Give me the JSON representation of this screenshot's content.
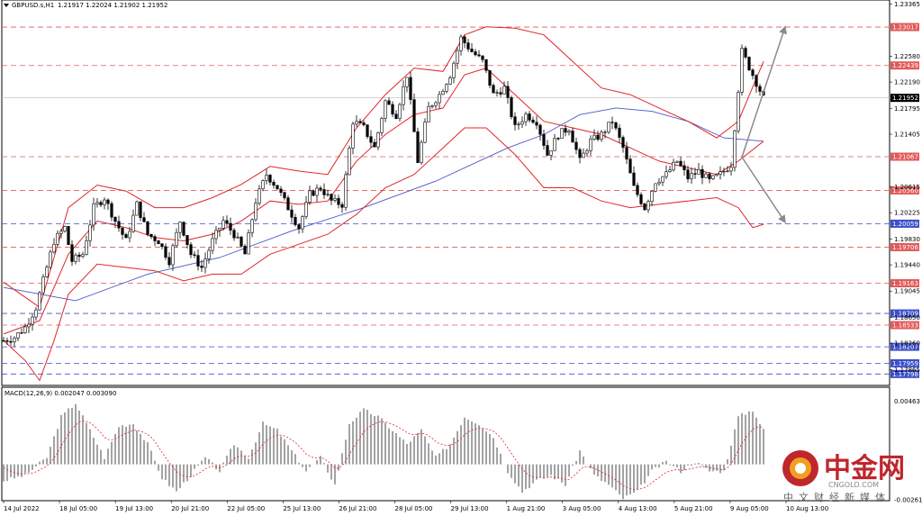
{
  "header": {
    "symbol": "GBPUSD.s,H1",
    "ohlc": "1.21917 1.22024 1.21902 1.21952"
  },
  "indicator": {
    "label": "MACD(12,26,9) 0.002047 0.003090"
  },
  "watermark": {
    "cn": "中金网",
    "en": "CNGOLD.COM",
    "sub": "中文财经新媒体"
  },
  "colors": {
    "bollinger": "#e0262b",
    "moving_average": "#4a56c8",
    "candles": "#000000",
    "resistance_line": "#e05a5a",
    "support_line": "#3b4fc8",
    "arrow": "#8a8a8a",
    "macd_hist": "#8c8c8c",
    "macd_signal": "#e0262b"
  },
  "chart_data": {
    "type": "candlestick",
    "symbol": "GBPUSD.s,H1",
    "ylim": [
      1.1768,
      1.2337
    ],
    "y_ticks": [
      "1.23365",
      "1.22580",
      "1.22190",
      "1.21795",
      "1.21405",
      "1.20615",
      "1.20225",
      "1.19830",
      "1.19440",
      "1.19045",
      "1.18650",
      "1.18260",
      "1.17865",
      "1.17470"
    ],
    "x_labels": [
      "14 Jul 2022",
      "18 Jul 05:00",
      "19 Jul 13:00",
      "20 Jul 21:00",
      "22 Jul 05:00",
      "25 Jul 13:00",
      "26 Jul 21:00",
      "28 Jul 05:00",
      "29 Jul 13:00",
      "1 Aug 21:00",
      "3 Aug 05:00",
      "4 Aug 13:00",
      "5 Aug 21:00",
      "9 Aug 05:00",
      "10 Aug 13:00"
    ],
    "current_price": "1.21952",
    "horizontal_lines": [
      {
        "value": 1.23017,
        "label": "1.23017",
        "kind": "resistance"
      },
      {
        "value": 1.22439,
        "label": "1.22439",
        "kind": "resistance"
      },
      {
        "value": 1.21067,
        "label": "1.21067",
        "kind": "resistance"
      },
      {
        "value": 1.2056,
        "label": "1.20560",
        "kind": "resistance"
      },
      {
        "value": 1.20059,
        "label": "1.20059",
        "kind": "support"
      },
      {
        "value": 1.19706,
        "label": "1.19706",
        "kind": "resistance"
      },
      {
        "value": 1.19163,
        "label": "1.19163",
        "kind": "resistance"
      },
      {
        "value": 1.18709,
        "label": "1.18709",
        "kind": "support"
      },
      {
        "value": 1.18533,
        "label": "1.18533",
        "kind": "resistance"
      },
      {
        "value": 1.18207,
        "label": "1.18207",
        "kind": "support"
      },
      {
        "value": 1.17959,
        "label": "1.17959",
        "kind": "support"
      },
      {
        "value": 1.17798,
        "label": "1.17798",
        "kind": "support"
      }
    ],
    "price_path": [
      [
        0,
        1.183
      ],
      [
        3,
        1.1835
      ],
      [
        6,
        1.185
      ],
      [
        9,
        1.188
      ],
      [
        11,
        1.192
      ],
      [
        14,
        1.198
      ],
      [
        17,
        1.2
      ],
      [
        19,
        1.195
      ],
      [
        22,
        1.196
      ],
      [
        25,
        1.203
      ],
      [
        28,
        1.2045
      ],
      [
        31,
        1.201
      ],
      [
        34,
        1.198
      ],
      [
        37,
        1.2035
      ],
      [
        40,
        1.199
      ],
      [
        43,
        1.198
      ],
      [
        46,
        1.195
      ],
      [
        49,
        1.201
      ],
      [
        52,
        1.196
      ],
      [
        55,
        1.194
      ],
      [
        58,
        1.198
      ],
      [
        61,
        1.201
      ],
      [
        64,
        1.199
      ],
      [
        67,
        1.196
      ],
      [
        70,
        1.204
      ],
      [
        73,
        1.208
      ],
      [
        76,
        1.206
      ],
      [
        79,
        1.203
      ],
      [
        82,
        1.2
      ],
      [
        85,
        1.205
      ],
      [
        88,
        1.206
      ],
      [
        91,
        1.204
      ],
      [
        94,
        1.2035
      ],
      [
        97,
        1.216
      ],
      [
        100,
        1.215
      ],
      [
        103,
        1.212
      ],
      [
        106,
        1.219
      ],
      [
        109,
        1.217
      ],
      [
        112,
        1.223
      ],
      [
        115,
        1.21
      ],
      [
        118,
        1.218
      ],
      [
        121,
        1.22
      ],
      [
        124,
        1.223
      ],
      [
        127,
        1.2285
      ],
      [
        130,
        1.2265
      ],
      [
        133,
        1.225
      ],
      [
        136,
        1.22
      ],
      [
        139,
        1.221
      ],
      [
        142,
        1.215
      ],
      [
        145,
        1.217
      ],
      [
        148,
        1.216
      ],
      [
        151,
        1.211
      ],
      [
        154,
        1.214
      ],
      [
        157,
        1.215
      ],
      [
        160,
        1.21
      ],
      [
        163,
        1.213
      ],
      [
        166,
        1.214
      ],
      [
        169,
        1.216
      ],
      [
        172,
        1.212
      ],
      [
        175,
        1.206
      ],
      [
        178,
        1.203
      ],
      [
        181,
        1.207
      ],
      [
        184,
        1.208
      ],
      [
        187,
        1.21
      ],
      [
        190,
        1.2075
      ],
      [
        193,
        1.2085
      ],
      [
        196,
        1.207
      ],
      [
        199,
        1.208
      ],
      [
        202,
        1.2095
      ],
      [
        205,
        1.2265
      ],
      [
        208,
        1.223
      ],
      [
        211,
        1.2195
      ]
    ],
    "bollinger_upper": [
      [
        0,
        1.1918
      ],
      [
        10,
        1.188
      ],
      [
        18,
        1.203
      ],
      [
        26,
        1.2064
      ],
      [
        34,
        1.2055
      ],
      [
        42,
        1.203
      ],
      [
        50,
        1.203
      ],
      [
        58,
        1.2045
      ],
      [
        66,
        1.2065
      ],
      [
        74,
        1.2092
      ],
      [
        82,
        1.2085
      ],
      [
        90,
        1.208
      ],
      [
        98,
        1.215
      ],
      [
        106,
        1.22
      ],
      [
        114,
        1.224
      ],
      [
        122,
        1.2235
      ],
      [
        128,
        1.229
      ],
      [
        134,
        1.2302
      ],
      [
        142,
        1.23
      ],
      [
        150,
        1.229
      ],
      [
        158,
        1.225
      ],
      [
        166,
        1.221
      ],
      [
        174,
        1.22
      ],
      [
        182,
        1.218
      ],
      [
        190,
        1.216
      ],
      [
        198,
        1.2135
      ],
      [
        204,
        1.216
      ],
      [
        211,
        1.225
      ]
    ],
    "bollinger_middle": [
      [
        0,
        1.184
      ],
      [
        10,
        1.186
      ],
      [
        18,
        1.196
      ],
      [
        26,
        1.201
      ],
      [
        34,
        1.2
      ],
      [
        42,
        1.1985
      ],
      [
        50,
        1.198
      ],
      [
        58,
        1.199
      ],
      [
        66,
        1.201
      ],
      [
        74,
        1.204
      ],
      [
        82,
        1.2035
      ],
      [
        90,
        1.204
      ],
      [
        98,
        1.21
      ],
      [
        106,
        1.214
      ],
      [
        114,
        1.217
      ],
      [
        122,
        1.218
      ],
      [
        128,
        1.223
      ],
      [
        134,
        1.224
      ],
      [
        142,
        1.22
      ],
      [
        150,
        1.216
      ],
      [
        158,
        1.215
      ],
      [
        166,
        1.214
      ],
      [
        174,
        1.212
      ],
      [
        182,
        1.21
      ],
      [
        190,
        1.209
      ],
      [
        198,
        1.208
      ],
      [
        204,
        1.21
      ],
      [
        211,
        1.213
      ]
    ],
    "bollinger_lower": [
      [
        0,
        1.183
      ],
      [
        6,
        1.18
      ],
      [
        10,
        1.177
      ],
      [
        14,
        1.183
      ],
      [
        18,
        1.19
      ],
      [
        26,
        1.1945
      ],
      [
        34,
        1.194
      ],
      [
        42,
        1.1935
      ],
      [
        50,
        1.192
      ],
      [
        58,
        1.193
      ],
      [
        66,
        1.193
      ],
      [
        74,
        1.196
      ],
      [
        82,
        1.1975
      ],
      [
        90,
        1.199
      ],
      [
        98,
        1.202
      ],
      [
        106,
        1.206
      ],
      [
        114,
        1.208
      ],
      [
        122,
        1.212
      ],
      [
        128,
        1.215
      ],
      [
        134,
        1.215
      ],
      [
        142,
        1.211
      ],
      [
        150,
        1.206
      ],
      [
        158,
        1.206
      ],
      [
        166,
        1.204
      ],
      [
        174,
        1.203
      ],
      [
        182,
        1.2035
      ],
      [
        190,
        1.204
      ],
      [
        198,
        1.2045
      ],
      [
        204,
        1.203
      ],
      [
        208,
        1.2
      ],
      [
        211,
        1.2005
      ]
    ],
    "moving_average": [
      [
        0,
        1.191
      ],
      [
        20,
        1.189
      ],
      [
        40,
        1.193
      ],
      [
        60,
        1.1955
      ],
      [
        80,
        1.1995
      ],
      [
        100,
        1.203
      ],
      [
        120,
        1.207
      ],
      [
        140,
        1.212
      ],
      [
        150,
        1.214
      ],
      [
        160,
        1.217
      ],
      [
        170,
        1.218
      ],
      [
        180,
        1.2175
      ],
      [
        190,
        1.216
      ],
      [
        200,
        1.2135
      ],
      [
        211,
        1.213
      ]
    ],
    "projection_arrows": [
      {
        "from": [
          205,
          1.2106
        ],
        "to": [
          217,
          1.2302
        ]
      },
      {
        "from": [
          205,
          1.2106
        ],
        "to": [
          217,
          1.2008
        ]
      }
    ],
    "macd": {
      "label": "MACD(12,26,9) 0.002047 0.003090",
      "ylim": [
        -0.0026,
        0.005
      ],
      "y_ticks": [
        "0.00463",
        "-0.002619"
      ],
      "histogram": [
        [
          0,
          -0.0012
        ],
        [
          6,
          -0.0008
        ],
        [
          12,
          0.0005
        ],
        [
          16,
          0.0035
        ],
        [
          20,
          0.0045
        ],
        [
          24,
          0.0025
        ],
        [
          28,
          0.0005
        ],
        [
          32,
          0.0028
        ],
        [
          36,
          0.003
        ],
        [
          40,
          0.0015
        ],
        [
          44,
          -0.001
        ],
        [
          48,
          -0.002
        ],
        [
          52,
          -0.0008
        ],
        [
          56,
          0.0005
        ],
        [
          60,
          -0.0005
        ],
        [
          64,
          0.0015
        ],
        [
          68,
          0.0005
        ],
        [
          72,
          0.003
        ],
        [
          76,
          0.0025
        ],
        [
          80,
          0.001
        ],
        [
          84,
          -0.0005
        ],
        [
          88,
          0.0005
        ],
        [
          92,
          -0.0015
        ],
        [
          96,
          0.003
        ],
        [
          100,
          0.004
        ],
        [
          104,
          0.0035
        ],
        [
          108,
          0.0025
        ],
        [
          112,
          0.0015
        ],
        [
          116,
          0.0025
        ],
        [
          120,
          0.0005
        ],
        [
          124,
          0.0015
        ],
        [
          128,
          0.0035
        ],
        [
          132,
          0.003
        ],
        [
          136,
          0.002
        ],
        [
          140,
          -0.0005
        ],
        [
          144,
          -0.002
        ],
        [
          148,
          -0.0012
        ],
        [
          152,
          -0.0008
        ],
        [
          156,
          -0.0015
        ],
        [
          160,
          0.001
        ],
        [
          164,
          -0.0008
        ],
        [
          168,
          -0.0015
        ],
        [
          172,
          -0.0025
        ],
        [
          176,
          -0.002
        ],
        [
          180,
          -0.0005
        ],
        [
          184,
          0.0002
        ],
        [
          188,
          -0.0005
        ],
        [
          192,
          0.0002
        ],
        [
          196,
          -0.0005
        ],
        [
          200,
          -0.0005
        ],
        [
          204,
          0.0035
        ],
        [
          208,
          0.004
        ],
        [
          211,
          0.0025
        ]
      ]
    }
  }
}
